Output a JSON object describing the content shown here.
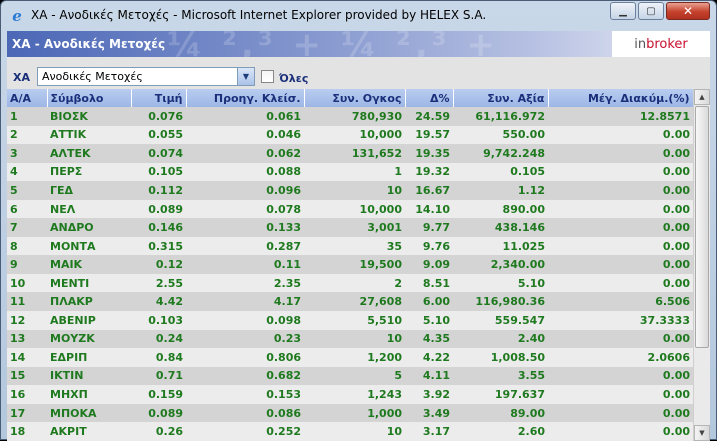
{
  "window": {
    "title": "ΧΑ - Ανοδικές Μετοχές - Microsoft Internet Explorer provided by HELEX S.A.",
    "icon": "ie-icon",
    "minimize_symbol": "▁",
    "maximize_symbol": "▢",
    "close_symbol": "✕"
  },
  "banner": {
    "title": "ΧΑ - Ανοδικές Μετοχές",
    "brand_prefix": "in",
    "brand_suffix": "broker"
  },
  "filter": {
    "market_label": "ΧΑ",
    "selected_option": "Ανοδικές Μετοχές",
    "all_label": "Όλες",
    "all_checked": false
  },
  "table": {
    "columns": [
      "Α/Α",
      "Σύμβολο",
      "Τιμή",
      "Προηγ. Κλείσ.",
      "Συν. Ογκος",
      "Δ%",
      "Συν. Αξία",
      "Μέγ. Διακύμ.(%)"
    ],
    "rows": [
      [
        "1",
        "ΒΙΟΣΚ",
        "0.076",
        "0.061",
        "780,930",
        "24.59",
        "61,116.972",
        "12.8571"
      ],
      [
        "2",
        "ΑΤΤΙΚ",
        "0.055",
        "0.046",
        "10,000",
        "19.57",
        "550.00",
        "0.00"
      ],
      [
        "3",
        "ΑΛΤΕΚ",
        "0.074",
        "0.062",
        "131,652",
        "19.35",
        "9,742.248",
        "0.00"
      ],
      [
        "4",
        "ΠΕΡΣ",
        "0.105",
        "0.088",
        "1",
        "19.32",
        "0.105",
        "0.00"
      ],
      [
        "5",
        "ΓΕΔ",
        "0.112",
        "0.096",
        "10",
        "16.67",
        "1.12",
        "0.00"
      ],
      [
        "6",
        "ΝΕΛ",
        "0.089",
        "0.078",
        "10,000",
        "14.10",
        "890.00",
        "0.00"
      ],
      [
        "7",
        "ΑΝΔΡΟ",
        "0.146",
        "0.133",
        "3,001",
        "9.77",
        "438.146",
        "0.00"
      ],
      [
        "8",
        "ΜΟΝΤΑ",
        "0.315",
        "0.287",
        "35",
        "9.76",
        "11.025",
        "0.00"
      ],
      [
        "9",
        "ΜΑΙΚ",
        "0.12",
        "0.11",
        "19,500",
        "9.09",
        "2,340.00",
        "0.00"
      ],
      [
        "10",
        "ΜΕΝΤΙ",
        "2.55",
        "2.35",
        "2",
        "8.51",
        "5.10",
        "0.00"
      ],
      [
        "11",
        "ΠΛΑΚΡ",
        "4.42",
        "4.17",
        "27,608",
        "6.00",
        "116,980.36",
        "6.506"
      ],
      [
        "12",
        "ΑΒΕΝΙΡ",
        "0.103",
        "0.098",
        "5,510",
        "5.10",
        "559.547",
        "37.3333"
      ],
      [
        "13",
        "ΜΟΥΖΚ",
        "0.24",
        "0.23",
        "10",
        "4.35",
        "2.40",
        "0.00"
      ],
      [
        "14",
        "ΕΔΡΙΠ",
        "0.84",
        "0.806",
        "1,200",
        "4.22",
        "1,008.50",
        "2.0606"
      ],
      [
        "15",
        "ΙΚΤΙΝ",
        "0.71",
        "0.682",
        "5",
        "4.11",
        "3.55",
        "0.00"
      ],
      [
        "16",
        "ΜΗΧΠ",
        "0.159",
        "0.153",
        "1,243",
        "3.92",
        "197.637",
        "0.00"
      ],
      [
        "17",
        "ΜΠΟΚΑ",
        "0.089",
        "0.086",
        "1,000",
        "3.49",
        "89.00",
        "0.00"
      ],
      [
        "18",
        "ΑΚΡΙΤ",
        "0.26",
        "0.252",
        "10",
        "3.17",
        "2.60",
        "0.00"
      ]
    ]
  },
  "colors": {
    "header_text": "#1a2f7a",
    "cell_text": "#1f7a1f",
    "header_bg": "#a9c0eb",
    "row_odd": "#d4d4d4",
    "row_even": "#ececec"
  }
}
